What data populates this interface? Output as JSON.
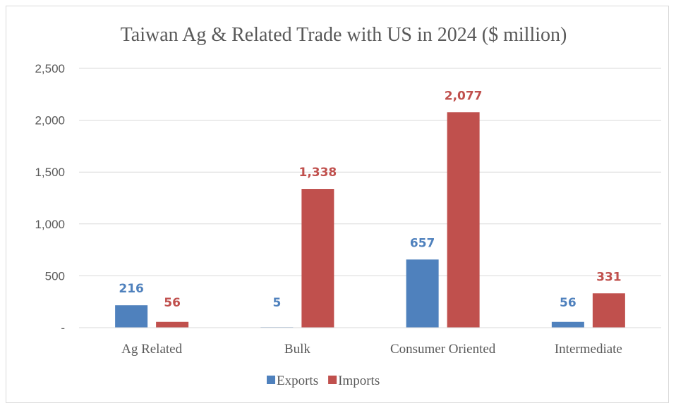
{
  "chart_data": {
    "type": "bar",
    "title": "Taiwan Ag & Related Trade with US in 2024 ($ million)",
    "categories": [
      "Ag Related",
      "Bulk",
      "Consumer Oriented",
      "Intermediate"
    ],
    "series": [
      {
        "name": "Exports",
        "values": [
          216,
          5,
          657,
          56
        ],
        "labels": [
          "216",
          "5",
          "657",
          "56"
        ],
        "color": "#4f81bd"
      },
      {
        "name": "Imports",
        "values": [
          56,
          1338,
          2077,
          331
        ],
        "labels": [
          "56",
          "1,338",
          "2,077",
          "331"
        ],
        "color": "#c0504d"
      }
    ],
    "ylim": [
      0,
      2500
    ],
    "yticks": [
      0,
      500,
      1000,
      1500,
      2000,
      2500
    ],
    "ytick_labels": [
      "-",
      "500",
      "1,000",
      "1,500",
      "2,000",
      "2,500"
    ],
    "grid": true,
    "legend": "bottom"
  }
}
